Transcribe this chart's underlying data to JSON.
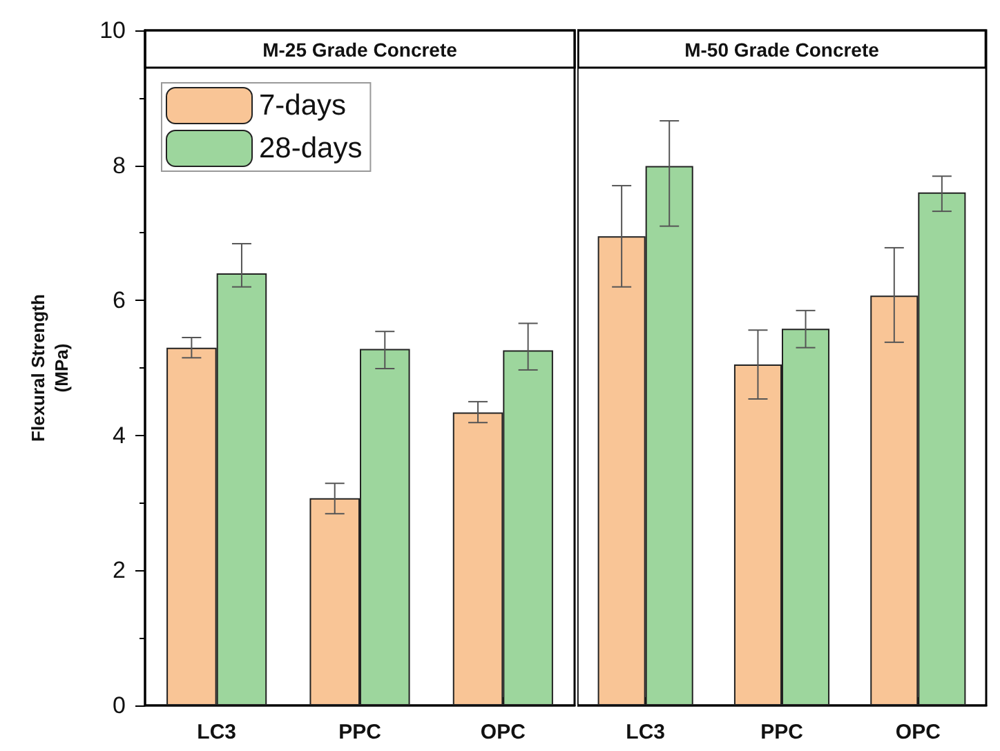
{
  "chart_data": [
    {
      "type": "bar",
      "title": "M-25 Grade Concrete",
      "ylabel": "Flexural Strength (MPa)",
      "categories": [
        "LC3",
        "PPC",
        "OPC"
      ],
      "series": [
        {
          "name": "7-days",
          "color": "#f9c596",
          "values": [
            5.3,
            3.07,
            4.34
          ],
          "errors": [
            [
              5.15,
              5.45
            ],
            [
              2.84,
              3.29
            ],
            [
              4.19,
              4.5
            ]
          ]
        },
        {
          "name": "28-days",
          "color": "#9dd69d",
          "values": [
            6.4,
            5.28,
            5.26
          ],
          "errors": [
            [
              6.2,
              6.84
            ],
            [
              4.99,
              5.54
            ],
            [
              4.97,
              5.66
            ]
          ]
        }
      ],
      "ylim": [
        0,
        10
      ],
      "yticks": [
        0,
        2,
        4,
        6,
        8,
        10
      ],
      "legend": "top left",
      "grid": false
    },
    {
      "type": "bar",
      "title": "M-50 Grade Concrete",
      "categories": [
        "LC3",
        "PPC",
        "OPC"
      ],
      "series": [
        {
          "color": "#f9c596",
          "values": [
            6.95,
            5.05,
            6.07
          ],
          "errors": [
            [
              6.2,
              7.7
            ],
            [
              4.54,
              5.56
            ],
            [
              5.38,
              6.78
            ]
          ]
        },
        {
          "color": "#9dd69d",
          "values": [
            7.99,
            5.58,
            7.6
          ],
          "errors": [
            [
              7.1,
              8.66
            ],
            [
              5.3,
              5.85
            ],
            [
              7.32,
              7.84
            ]
          ]
        }
      ],
      "ylim": [
        0,
        10
      ],
      "tick_labels": "x",
      "legend": false,
      "grid": false
    }
  ]
}
